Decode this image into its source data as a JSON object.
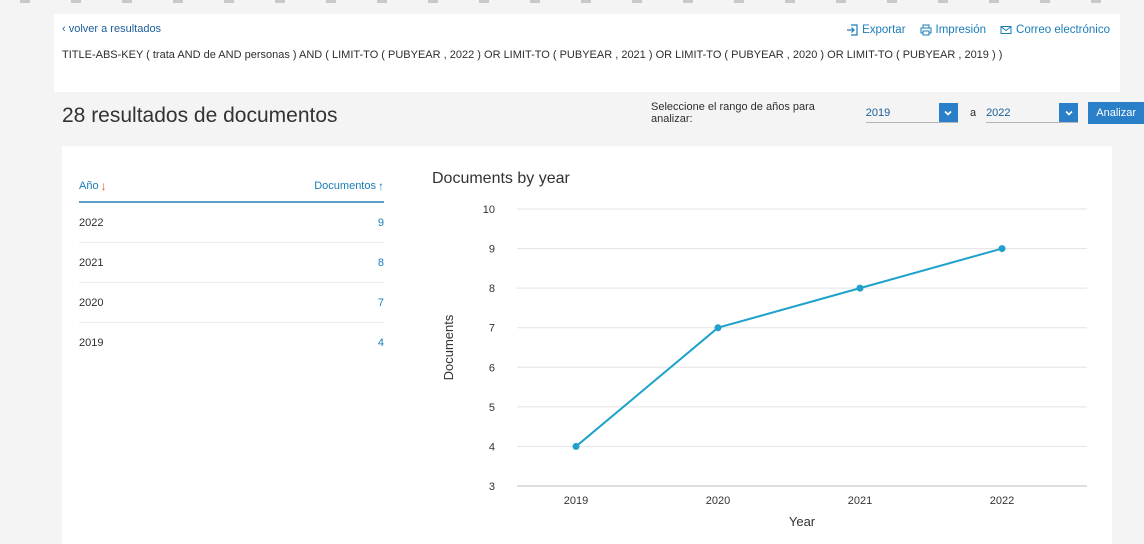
{
  "nav": {
    "back_label": "volver a resultados"
  },
  "actions": {
    "export_label": "Exportar",
    "print_label": "Impresión",
    "email_label": "Correo electrónico"
  },
  "query": {
    "text": "TITLE-ABS-KEY ( trata AND de AND personas ) AND ( LIMIT-TO ( PUBYEAR , 2022 ) OR LIMIT-TO ( PUBYEAR , 2021 ) OR LIMIT-TO ( PUBYEAR , 2020 ) OR LIMIT-TO ( PUBYEAR , 2019 ) )"
  },
  "results": {
    "title": "28 resultados de documentos"
  },
  "range": {
    "label": "Seleccione el rango de años para analizar:",
    "from_value": "2019",
    "to_label": "a",
    "to_value": "2022",
    "analyze_label": "Analizar"
  },
  "table": {
    "col_year": "Año",
    "col_docs": "Documentos",
    "rows": [
      {
        "year": "2022",
        "count": "9"
      },
      {
        "year": "2021",
        "count": "8"
      },
      {
        "year": "2020",
        "count": "7"
      },
      {
        "year": "2019",
        "count": "4"
      }
    ]
  },
  "colors": {
    "accent": "#2a7fc9",
    "line": "#1ea2cc",
    "sort_desc": "#e2541b"
  },
  "chart_data": {
    "type": "line",
    "title": "Documents by year",
    "xlabel": "Year",
    "ylabel": "Documents",
    "categories": [
      "2019",
      "2020",
      "2021",
      "2022"
    ],
    "series": [
      {
        "values": [
          4,
          7,
          8,
          9
        ]
      }
    ],
    "ylim": [
      3,
      10
    ],
    "yticks": [
      3,
      4,
      5,
      6,
      7,
      8,
      9,
      10
    ],
    "grid": true
  }
}
